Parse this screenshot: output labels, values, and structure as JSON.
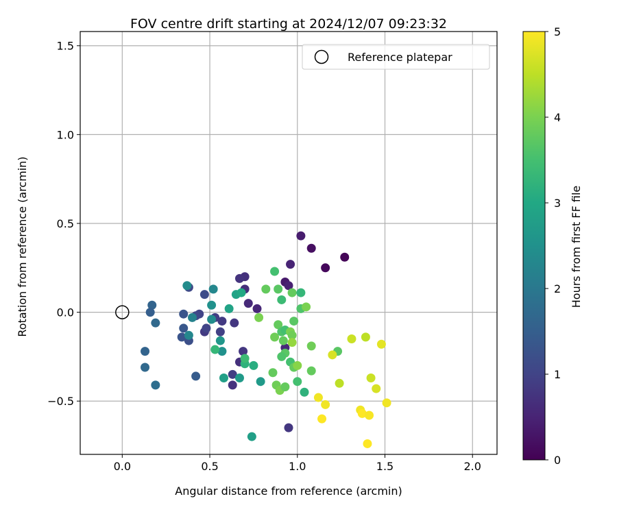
{
  "chart_data": {
    "type": "scatter",
    "title": "FOV centre drift starting at 2024/12/07 09:23:32",
    "xlabel": "Angular distance from reference (arcmin)",
    "ylabel": "Rotation from reference (arcmin)",
    "xlim": [
      -0.24,
      2.14
    ],
    "ylim": [
      -0.8,
      1.58
    ],
    "xticks": [
      0.0,
      0.5,
      1.0,
      1.5,
      2.0
    ],
    "xtick_labels": [
      "0.0",
      "0.5",
      "1.0",
      "1.5",
      "2.0"
    ],
    "yticks": [
      -0.5,
      0.0,
      0.5,
      1.0,
      1.5
    ],
    "ytick_labels": [
      "−0.5",
      "0.0",
      "0.5",
      "1.0",
      "1.5"
    ],
    "grid": true,
    "legend": {
      "position": "top-right",
      "entries": [
        {
          "label": "Reference platepar",
          "marker": "open-circle"
        }
      ]
    },
    "reference_point": {
      "x": 0.0,
      "y": 0.0
    },
    "colorbar": {
      "label": "Hours from first FF file",
      "colormap": "viridis",
      "range": [
        0,
        5
      ],
      "ticks": [
        0,
        1,
        2,
        3,
        4,
        5
      ],
      "tick_labels": [
        "0",
        "1",
        "2",
        "3",
        "4",
        "5"
      ]
    },
    "points": [
      {
        "x": 1.27,
        "y": 0.31,
        "hours": 0.05
      },
      {
        "x": 1.16,
        "y": 0.25,
        "hours": 0.1
      },
      {
        "x": 1.08,
        "y": 0.36,
        "hours": 0.2
      },
      {
        "x": 1.02,
        "y": 0.43,
        "hours": 0.4
      },
      {
        "x": 0.96,
        "y": 0.27,
        "hours": 0.5
      },
      {
        "x": 0.93,
        "y": 0.17,
        "hours": 0.35
      },
      {
        "x": 0.95,
        "y": 0.15,
        "hours": 0.45
      },
      {
        "x": 0.77,
        "y": 0.02,
        "hours": 0.55
      },
      {
        "x": 0.72,
        "y": 0.05,
        "hours": 0.6
      },
      {
        "x": 0.7,
        "y": 0.2,
        "hours": 0.7
      },
      {
        "x": 0.67,
        "y": 0.19,
        "hours": 0.75
      },
      {
        "x": 0.7,
        "y": 0.13,
        "hours": 0.65
      },
      {
        "x": 0.93,
        "y": -0.2,
        "hours": 0.6
      },
      {
        "x": 0.95,
        "y": -0.65,
        "hours": 0.8
      },
      {
        "x": 0.64,
        "y": -0.06,
        "hours": 0.8
      },
      {
        "x": 0.57,
        "y": -0.05,
        "hours": 0.85
      },
      {
        "x": 0.56,
        "y": -0.11,
        "hours": 0.95
      },
      {
        "x": 0.53,
        "y": -0.03,
        "hours": 0.9
      },
      {
        "x": 0.67,
        "y": -0.28,
        "hours": 0.7
      },
      {
        "x": 0.69,
        "y": -0.22,
        "hours": 0.8
      },
      {
        "x": 0.63,
        "y": -0.41,
        "hours": 0.75
      },
      {
        "x": 0.63,
        "y": -0.35,
        "hours": 0.9
      },
      {
        "x": 0.47,
        "y": -0.11,
        "hours": 0.85
      },
      {
        "x": 0.48,
        "y": -0.09,
        "hours": 1.0
      },
      {
        "x": 0.44,
        "y": -0.01,
        "hours": 1.0
      },
      {
        "x": 0.42,
        "y": -0.02,
        "hours": 1.1
      },
      {
        "x": 0.38,
        "y": 0.14,
        "hours": 1.1
      },
      {
        "x": 0.47,
        "y": 0.1,
        "hours": 1.15
      },
      {
        "x": 0.38,
        "y": -0.16,
        "hours": 1.2
      },
      {
        "x": 0.34,
        "y": -0.14,
        "hours": 1.3
      },
      {
        "x": 0.35,
        "y": -0.09,
        "hours": 1.35
      },
      {
        "x": 0.35,
        "y": -0.01,
        "hours": 1.3
      },
      {
        "x": 0.42,
        "y": -0.36,
        "hours": 1.45
      },
      {
        "x": 0.17,
        "y": 0.04,
        "hours": 1.6
      },
      {
        "x": 0.16,
        "y": 0.0,
        "hours": 1.5
      },
      {
        "x": 0.19,
        "y": -0.06,
        "hours": 1.7
      },
      {
        "x": 0.13,
        "y": -0.22,
        "hours": 1.6
      },
      {
        "x": 0.13,
        "y": -0.31,
        "hours": 1.7
      },
      {
        "x": 0.19,
        "y": -0.41,
        "hours": 1.8
      },
      {
        "x": 0.37,
        "y": 0.15,
        "hours": 2.4
      },
      {
        "x": 0.38,
        "y": -0.13,
        "hours": 2.3
      },
      {
        "x": 0.4,
        "y": -0.03,
        "hours": 2.2
      },
      {
        "x": 0.52,
        "y": 0.13,
        "hours": 2.3
      },
      {
        "x": 0.51,
        "y": 0.04,
        "hours": 2.5
      },
      {
        "x": 0.51,
        "y": -0.04,
        "hours": 2.4
      },
      {
        "x": 0.56,
        "y": -0.16,
        "hours": 2.6
      },
      {
        "x": 0.57,
        "y": -0.22,
        "hours": 2.5
      },
      {
        "x": 0.53,
        "y": -0.21,
        "hours": 3.3
      },
      {
        "x": 0.58,
        "y": -0.37,
        "hours": 2.8
      },
      {
        "x": 0.67,
        "y": -0.37,
        "hours": 2.7
      },
      {
        "x": 0.61,
        "y": 0.02,
        "hours": 2.9
      },
      {
        "x": 0.65,
        "y": 0.1,
        "hours": 2.9
      },
      {
        "x": 0.68,
        "y": 0.11,
        "hours": 3.0
      },
      {
        "x": 0.7,
        "y": -0.29,
        "hours": 3.2
      },
      {
        "x": 0.7,
        "y": -0.26,
        "hours": 3.4
      },
      {
        "x": 0.75,
        "y": -0.3,
        "hours": 3.1
      },
      {
        "x": 0.79,
        "y": -0.39,
        "hours": 2.7
      },
      {
        "x": 0.74,
        "y": -0.7,
        "hours": 2.8
      },
      {
        "x": 0.82,
        "y": 0.13,
        "hours": 3.8
      },
      {
        "x": 0.87,
        "y": 0.23,
        "hours": 3.5
      },
      {
        "x": 0.89,
        "y": 0.13,
        "hours": 3.7
      },
      {
        "x": 0.91,
        "y": 0.07,
        "hours": 3.4
      },
      {
        "x": 0.97,
        "y": 0.11,
        "hours": 3.8
      },
      {
        "x": 1.02,
        "y": 0.11,
        "hours": 3.3
      },
      {
        "x": 1.02,
        "y": 0.02,
        "hours": 3.6
      },
      {
        "x": 1.05,
        "y": 0.03,
        "hours": 4.0
      },
      {
        "x": 0.78,
        "y": -0.03,
        "hours": 4.0
      },
      {
        "x": 0.87,
        "y": -0.14,
        "hours": 3.9
      },
      {
        "x": 0.89,
        "y": -0.07,
        "hours": 3.8
      },
      {
        "x": 0.91,
        "y": -0.11,
        "hours": 3.6
      },
      {
        "x": 0.93,
        "y": -0.1,
        "hours": 3.5
      },
      {
        "x": 0.96,
        "y": -0.11,
        "hours": 4.0
      },
      {
        "x": 0.97,
        "y": -0.13,
        "hours": 3.9
      },
      {
        "x": 0.97,
        "y": -0.17,
        "hours": 4.2
      },
      {
        "x": 0.98,
        "y": -0.05,
        "hours": 3.7
      },
      {
        "x": 0.92,
        "y": -0.16,
        "hours": 3.8
      },
      {
        "x": 0.93,
        "y": -0.23,
        "hours": 3.7
      },
      {
        "x": 0.91,
        "y": -0.25,
        "hours": 3.6
      },
      {
        "x": 0.96,
        "y": -0.28,
        "hours": 3.5
      },
      {
        "x": 0.98,
        "y": -0.31,
        "hours": 3.8
      },
      {
        "x": 1.0,
        "y": -0.3,
        "hours": 4.1
      },
      {
        "x": 1.08,
        "y": -0.19,
        "hours": 3.9
      },
      {
        "x": 1.08,
        "y": -0.33,
        "hours": 3.8
      },
      {
        "x": 1.23,
        "y": -0.22,
        "hours": 3.7
      },
      {
        "x": 0.86,
        "y": -0.34,
        "hours": 3.8
      },
      {
        "x": 0.88,
        "y": -0.41,
        "hours": 3.9
      },
      {
        "x": 0.9,
        "y": -0.44,
        "hours": 4.0
      },
      {
        "x": 0.93,
        "y": -0.42,
        "hours": 3.8
      },
      {
        "x": 1.0,
        "y": -0.39,
        "hours": 3.5
      },
      {
        "x": 1.04,
        "y": -0.45,
        "hours": 3.2
      },
      {
        "x": 1.2,
        "y": -0.24,
        "hours": 4.7
      },
      {
        "x": 1.31,
        "y": -0.15,
        "hours": 4.6
      },
      {
        "x": 1.39,
        "y": -0.14,
        "hours": 4.5
      },
      {
        "x": 1.48,
        "y": -0.18,
        "hours": 4.8
      },
      {
        "x": 1.24,
        "y": -0.4,
        "hours": 4.5
      },
      {
        "x": 1.42,
        "y": -0.37,
        "hours": 4.6
      },
      {
        "x": 1.45,
        "y": -0.43,
        "hours": 4.7
      },
      {
        "x": 1.12,
        "y": -0.48,
        "hours": 4.9
      },
      {
        "x": 1.16,
        "y": -0.52,
        "hours": 4.9
      },
      {
        "x": 1.14,
        "y": -0.6,
        "hours": 5.0
      },
      {
        "x": 1.36,
        "y": -0.55,
        "hours": 4.9
      },
      {
        "x": 1.37,
        "y": -0.57,
        "hours": 5.0
      },
      {
        "x": 1.41,
        "y": -0.58,
        "hours": 4.95
      },
      {
        "x": 1.51,
        "y": -0.51,
        "hours": 4.9
      },
      {
        "x": 1.4,
        "y": -0.74,
        "hours": 5.0
      }
    ]
  }
}
